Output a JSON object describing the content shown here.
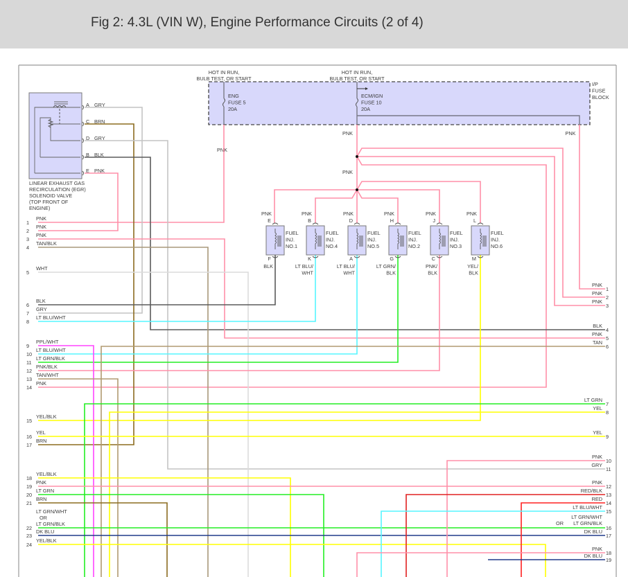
{
  "title": "Fig 2: 4.3L (VIN W), Engine Performance Circuits (2 of 4)",
  "fuse_block": {
    "label": [
      "I/P",
      "FUSE",
      "BLOCK"
    ],
    "fuses": [
      {
        "hot_label": [
          "HOT IN RUN,",
          "BULB TEST, OR START"
        ],
        "name": [
          "ENG",
          "FUSE 5",
          "20A"
        ],
        "wire": "PNK"
      },
      {
        "hot_label": [
          "HOT IN RUN,",
          "BULB TEST, OR START"
        ],
        "name": [
          "ECM/IGN",
          "FUSE 10",
          "20A"
        ],
        "wire": "PNK"
      }
    ],
    "right_wire": "PNK"
  },
  "splice_label": "PNK",
  "egr": {
    "label": [
      "LINEAR EXHAUST GAS",
      "RECIRCULATION (EGR)",
      "SOLENOID VALVE",
      "(TOP FRONT OF",
      "ENGINE)"
    ],
    "pins": [
      {
        "pin": "A",
        "wire": "GRY"
      },
      {
        "pin": "C",
        "wire": "BRN"
      },
      {
        "pin": "D",
        "wire": "GRY"
      },
      {
        "pin": "B",
        "wire": "BLK"
      },
      {
        "pin": "E",
        "wire": "PNK"
      }
    ]
  },
  "injectors": [
    {
      "name": [
        "FUEL",
        "INJ.",
        "NO.1"
      ],
      "top_pin": "E",
      "bottom_pin": "F",
      "top_wire": "PNK",
      "bottom_wire": [
        "BLK"
      ]
    },
    {
      "name": [
        "FUEL",
        "INJ.",
        "NO.4"
      ],
      "top_pin": "B",
      "bottom_pin": "K",
      "top_wire": "PNK",
      "bottom_wire": [
        "LT BLU/",
        "WHT"
      ]
    },
    {
      "name": [
        "FUEL",
        "INJ.",
        "NO.5"
      ],
      "top_pin": "D",
      "bottom_pin": "A",
      "top_wire": "PNK",
      "bottom_wire": [
        "LT BLU/",
        "WHT"
      ]
    },
    {
      "name": [
        "FUEL",
        "INJ.",
        "NO.2"
      ],
      "top_pin": "H",
      "bottom_pin": "G",
      "top_wire": "PNK",
      "bottom_wire": [
        "LT GRN/",
        "BLK"
      ]
    },
    {
      "name": [
        "FUEL",
        "INJ.",
        "NO.3"
      ],
      "top_pin": "J",
      "bottom_pin": "C",
      "top_wire": "PNK",
      "bottom_wire": [
        "PNK/",
        "BLK"
      ]
    },
    {
      "name": [
        "FUEL",
        "INJ.",
        "NO.6"
      ],
      "top_pin": "L",
      "bottom_pin": "M",
      "top_wire": "PNK",
      "bottom_wire": [
        "YEL/",
        "BLK"
      ]
    }
  ],
  "left_wires": [
    {
      "num": "1",
      "label": [
        "PNK"
      ]
    },
    {
      "num": "2",
      "label": [
        "PNK"
      ]
    },
    {
      "num": "3",
      "label": [
        "PNK"
      ]
    },
    {
      "num": "4",
      "label": [
        "TAN/BLK"
      ]
    },
    {
      "num": "5",
      "label": [
        "WHT"
      ]
    },
    {
      "num": "6",
      "label": [
        "BLK"
      ]
    },
    {
      "num": "7",
      "label": [
        "GRY"
      ]
    },
    {
      "num": "8",
      "label": [
        "LT BLU/WHT"
      ]
    },
    {
      "num": "9",
      "label": [
        "PPL/WHT"
      ]
    },
    {
      "num": "10",
      "label": [
        "LT BLU/WHT"
      ]
    },
    {
      "num": "11",
      "label": [
        "LT GRN/BLK"
      ]
    },
    {
      "num": "12",
      "label": [
        "PNK/BLK"
      ]
    },
    {
      "num": "13",
      "label": [
        "TAN/WHT"
      ]
    },
    {
      "num": "14",
      "label": [
        "PNK"
      ]
    },
    {
      "num": "15",
      "label": [
        "YEL/BLK"
      ]
    },
    {
      "num": "16",
      "label": [
        "YEL"
      ]
    },
    {
      "num": "17",
      "label": [
        "BRN"
      ]
    },
    {
      "num": "18",
      "label": [
        "YEL/BLK"
      ]
    },
    {
      "num": "19",
      "label": [
        "PNK"
      ]
    },
    {
      "num": "20",
      "label": [
        "LT GRN"
      ]
    },
    {
      "num": "21",
      "label": [
        "BRN"
      ]
    },
    {
      "num": "22",
      "label": [
        "LT GRN/WHT",
        "OR",
        "LT GRN/BLK"
      ]
    },
    {
      "num": "23",
      "label": [
        "DK BLU"
      ]
    },
    {
      "num": "24",
      "label": [
        "YEL/BLK"
      ]
    }
  ],
  "right_wires": [
    {
      "num": "1",
      "label": [
        "PNK"
      ]
    },
    {
      "num": "2",
      "label": [
        "PNK"
      ]
    },
    {
      "num": "3",
      "label": [
        "PNK"
      ]
    },
    {
      "num": "4",
      "label": [
        "BLK"
      ]
    },
    {
      "num": "5",
      "label": [
        "PNK"
      ]
    },
    {
      "num": "6",
      "label": [
        "TAN"
      ]
    },
    {
      "num": "7",
      "label": [
        "LT GRN"
      ]
    },
    {
      "num": "8",
      "label": [
        "YEL"
      ]
    },
    {
      "num": "9",
      "label": [
        "YEL"
      ]
    },
    {
      "num": "10",
      "label": [
        "PNK"
      ]
    },
    {
      "num": "11",
      "label": [
        "GRY"
      ]
    },
    {
      "num": "12",
      "label": [
        "PNK"
      ]
    },
    {
      "num": "13",
      "label": [
        "RED/BLK"
      ]
    },
    {
      "num": "14",
      "label": [
        "RED"
      ]
    },
    {
      "num": "15",
      "label": [
        "LT BLU/WHT"
      ]
    },
    {
      "num": "16",
      "label": [
        "LT GRN/WHT",
        "OR",
        "LT GRN/BLK"
      ]
    },
    {
      "num": "17",
      "label": [
        "DK BLU"
      ]
    },
    {
      "num": "18",
      "label": [
        "PNK"
      ]
    },
    {
      "num": "19",
      "label": [
        "DK BLU"
      ]
    }
  ],
  "colors": {
    "header_bg": "#d8d8d8",
    "component_fill": "#d8d8fb",
    "PNK": "#ff8fa8",
    "GRY": "#c4c4c4",
    "BRN": "#8b6b1f",
    "BLK": "#5a5a5a",
    "TAN": "#b09a70",
    "TANBLK": "#a8987a",
    "WHT": "#dcdcdc",
    "LTBLU": "#55f5ff",
    "LTGRN": "#22ee22",
    "YEL": "#ffff00",
    "PPL": "#ff44ff",
    "RED": "#ff2020",
    "REDBLK": "#e02020",
    "DKBLU": "#203a8a",
    "INNER": "#777788"
  }
}
